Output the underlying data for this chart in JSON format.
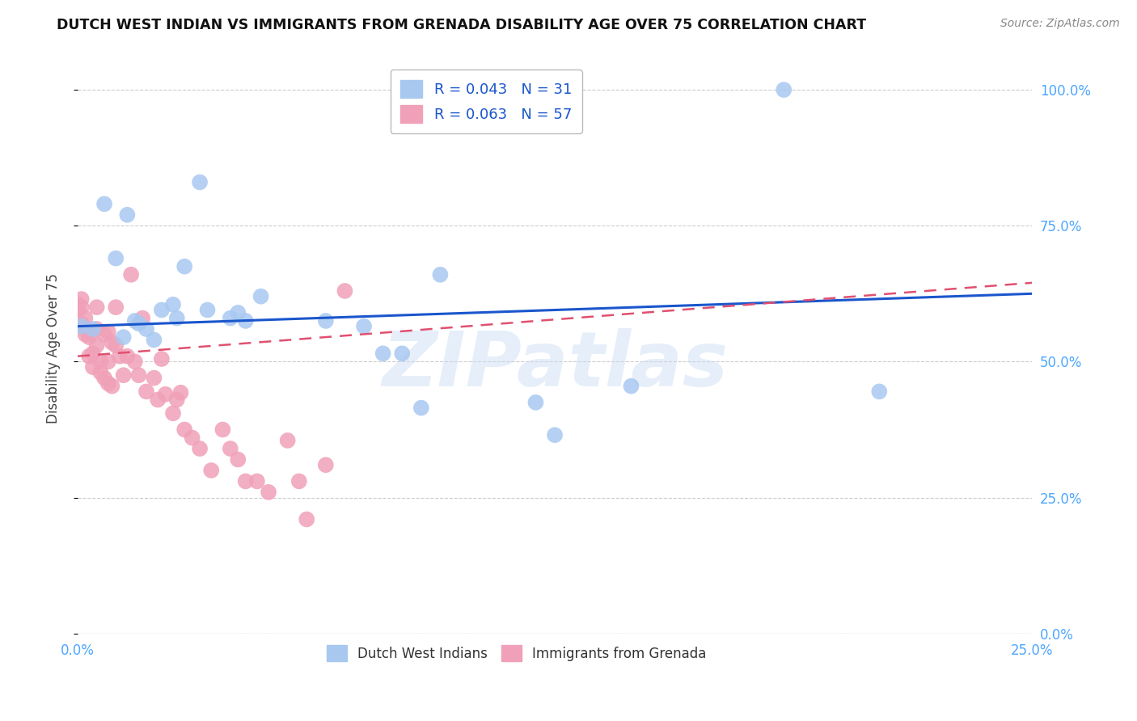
{
  "title": "DUTCH WEST INDIAN VS IMMIGRANTS FROM GRENADA DISABILITY AGE OVER 75 CORRELATION CHART",
  "source": "Source: ZipAtlas.com",
  "ylabel": "Disability Age Over 75",
  "xlim": [
    0.0,
    0.25
  ],
  "ylim": [
    0.0,
    1.05
  ],
  "xtick_labels_bottom": [
    "0.0%",
    "25.0%"
  ],
  "xtick_vals_bottom": [
    0.0,
    0.25
  ],
  "ytick_labels_right": [
    "100.0%",
    "75.0%",
    "50.0%",
    "25.0%",
    "0.0%"
  ],
  "ytick_vals": [
    1.0,
    0.75,
    0.5,
    0.25,
    0.0
  ],
  "blue_R": "0.043",
  "blue_N": "31",
  "pink_R": "0.063",
  "pink_N": "57",
  "legend_label_blue": "Dutch West Indians",
  "legend_label_pink": "Immigrants from Grenada",
  "blue_color": "#a8c8f0",
  "pink_color": "#f0a0b8",
  "blue_line_color": "#1a56cc",
  "pink_line_color": "#e05070",
  "grid_color": "#cccccc",
  "background_color": "#ffffff",
  "blue_scatter_x": [
    0.001,
    0.004,
    0.007,
    0.01,
    0.012,
    0.013,
    0.015,
    0.016,
    0.018,
    0.02,
    0.022,
    0.025,
    0.026,
    0.028,
    0.032,
    0.034,
    0.04,
    0.042,
    0.044,
    0.048,
    0.065,
    0.075,
    0.08,
    0.085,
    0.09,
    0.095,
    0.12,
    0.125,
    0.145,
    0.185,
    0.21
  ],
  "blue_scatter_y": [
    0.565,
    0.56,
    0.79,
    0.69,
    0.545,
    0.77,
    0.575,
    0.57,
    0.56,
    0.54,
    0.595,
    0.605,
    0.58,
    0.675,
    0.83,
    0.595,
    0.58,
    0.59,
    0.575,
    0.62,
    0.575,
    0.565,
    0.515,
    0.515,
    0.415,
    0.66,
    0.425,
    0.365,
    0.455,
    1.0,
    0.445
  ],
  "pink_scatter_x": [
    0.0,
    0.0,
    0.001,
    0.001,
    0.001,
    0.002,
    0.002,
    0.002,
    0.003,
    0.003,
    0.003,
    0.004,
    0.004,
    0.005,
    0.005,
    0.005,
    0.006,
    0.006,
    0.007,
    0.007,
    0.008,
    0.008,
    0.008,
    0.009,
    0.009,
    0.01,
    0.01,
    0.011,
    0.012,
    0.013,
    0.014,
    0.015,
    0.016,
    0.017,
    0.018,
    0.02,
    0.021,
    0.022,
    0.023,
    0.025,
    0.026,
    0.027,
    0.028,
    0.03,
    0.032,
    0.035,
    0.038,
    0.04,
    0.042,
    0.044,
    0.047,
    0.05,
    0.055,
    0.058,
    0.06,
    0.065,
    0.07
  ],
  "pink_scatter_y": [
    0.605,
    0.595,
    0.615,
    0.6,
    0.57,
    0.58,
    0.56,
    0.55,
    0.545,
    0.51,
    0.555,
    0.515,
    0.49,
    0.6,
    0.56,
    0.53,
    0.5,
    0.48,
    0.55,
    0.47,
    0.555,
    0.5,
    0.46,
    0.535,
    0.455,
    0.53,
    0.6,
    0.51,
    0.475,
    0.51,
    0.66,
    0.5,
    0.475,
    0.58,
    0.445,
    0.47,
    0.43,
    0.505,
    0.44,
    0.405,
    0.43,
    0.443,
    0.375,
    0.36,
    0.34,
    0.3,
    0.375,
    0.34,
    0.32,
    0.28,
    0.28,
    0.26,
    0.355,
    0.28,
    0.21,
    0.31,
    0.63
  ],
  "blue_trendline_x": [
    0.0,
    0.25
  ],
  "blue_trendline_y": [
    0.565,
    0.625
  ],
  "pink_trendline_x": [
    0.0,
    0.25
  ],
  "pink_trendline_y": [
    0.51,
    0.645
  ],
  "watermark_text": "ZIPatlas",
  "watermark_color": "#c8daf5",
  "watermark_alpha": 0.45
}
